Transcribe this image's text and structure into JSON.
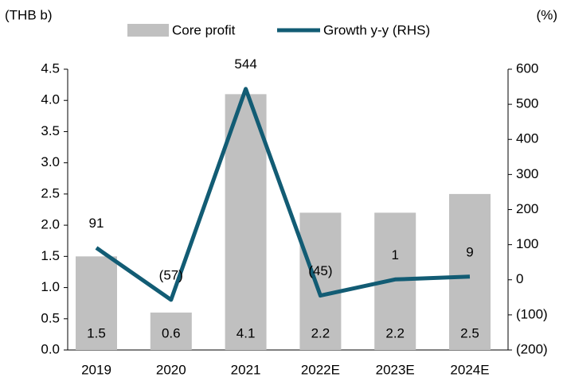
{
  "chart_data": {
    "type": "bar_line",
    "y_axis_label": "(THB b)",
    "y2_axis_label": "(%)",
    "categories": [
      "2019",
      "2020",
      "2021",
      "2022E",
      "2023E",
      "2024E"
    ],
    "series": [
      {
        "name": "Core profit",
        "type": "bar",
        "color": "#c0c0c0",
        "values": [
          1.5,
          0.6,
          4.1,
          2.2,
          2.2,
          2.5
        ]
      },
      {
        "name": "Growth y-y (RHS)",
        "type": "line",
        "axis": "y2",
        "color": "#125c74",
        "values": [
          91,
          -57,
          544,
          -45,
          1,
          9
        ],
        "value_labels": [
          "91",
          "(57)",
          "544",
          "(45)",
          "1",
          "9"
        ]
      }
    ],
    "ylim": [
      0,
      4.5
    ],
    "yticks": [
      {
        "value": 0,
        "label": "0.0"
      },
      0.5,
      {
        "value": 1,
        "label": "1.0"
      },
      1.5,
      {
        "value": 2,
        "label": "2.0"
      },
      2.5,
      {
        "value": 3,
        "label": "3.0"
      },
      3.5,
      {
        "value": 4,
        "label": "4.0"
      },
      4.5
    ],
    "y2lim": [
      -200,
      600
    ],
    "y2ticks": [
      {
        "value": -200,
        "label": "(200)"
      },
      {
        "value": -100,
        "label": "(100)"
      },
      0,
      100,
      200,
      300,
      400,
      500,
      600
    ],
    "legend": "top"
  }
}
